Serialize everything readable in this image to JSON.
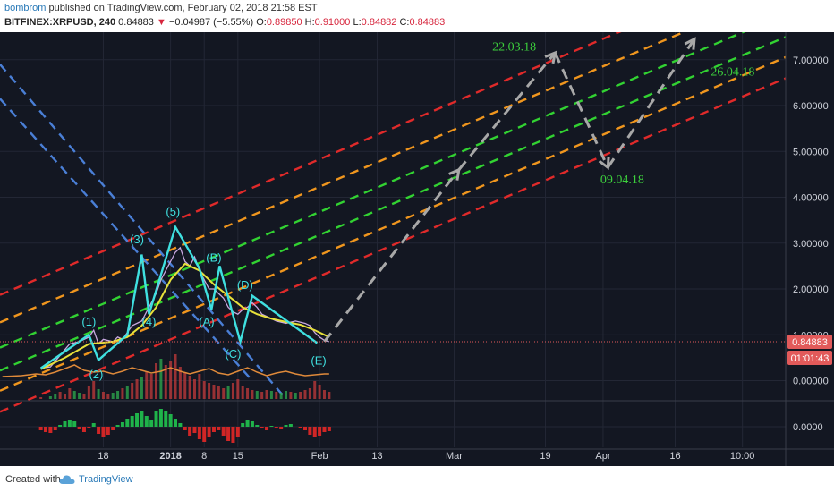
{
  "header": {
    "author": "bombrom",
    "published": "published on TradingView.com, February 02, 2018 21:58 EST",
    "symbol": "BITFINEX:XRPUSD, 240",
    "last": "0.84883",
    "change": "−0.04987 (−5.55%)",
    "o_label": "O:",
    "o_value": "0.89850",
    "h_label": "H:",
    "h_value": "0.91000",
    "l_label": "L:",
    "l_value": "0.84882",
    "c_label": "C:",
    "c_value": "0.84883"
  },
  "footer": {
    "created": "Created with",
    "brand": "TradingView"
  },
  "colors": {
    "bg": "#131722",
    "grid": "#232735",
    "axis_text": "#d1d4dc",
    "red": "#e02a2a",
    "orange": "#f0961e",
    "green": "#32d232",
    "blue": "#4a7fd6",
    "cyan": "#3fe0e0",
    "yellow": "#e7e13a",
    "gray_arrow": "#a8a8a8",
    "label_green": "#3ccf3c",
    "price_badge": "#e25a5a"
  },
  "chart_data": {
    "type": "line",
    "y_ticks": [
      "7.00000",
      "6.00000",
      "5.00000",
      "4.00000",
      "3.00000",
      "2.00000",
      "1.00000",
      "0.00000"
    ],
    "y_tick_values": [
      7,
      6,
      5,
      4,
      3,
      2,
      1,
      0
    ],
    "ylim": [
      -0.4,
      7.6
    ],
    "x_ticks": [
      "18",
      "2018",
      "8",
      "15",
      "Feb",
      "13",
      "Mar",
      "19",
      "Apr",
      "16",
      "10:00"
    ],
    "x_tick_days": [
      -14,
      0,
      7,
      14,
      31,
      43,
      59,
      78,
      90,
      105,
      119
    ],
    "x_tick_bold": [
      false,
      true,
      false,
      false,
      false,
      false,
      false,
      false,
      false,
      false,
      false
    ],
    "xlim": [
      -35.5,
      128
    ],
    "last_price": "0.84883",
    "countdown": "01:01:43",
    "oscillator_tick": "0.0000",
    "price": [
      [
        -27,
        0.27
      ],
      [
        -25,
        0.3
      ],
      [
        -23,
        0.55
      ],
      [
        -21,
        0.8
      ],
      [
        -19,
        0.85
      ],
      [
        -17,
        0.95
      ],
      [
        -16,
        1.1
      ],
      [
        -15,
        0.8
      ],
      [
        -14,
        0.9
      ],
      [
        -12,
        0.85
      ],
      [
        -11,
        0.95
      ],
      [
        -10,
        0.9
      ],
      [
        -9,
        1.05
      ],
      [
        -8,
        1.2
      ],
      [
        -6,
        1.3
      ],
      [
        -5,
        1.5
      ],
      [
        -3,
        1.9
      ],
      [
        -2,
        2.2
      ],
      [
        0,
        2.6
      ],
      [
        1,
        2.8
      ],
      [
        2,
        2.9
      ],
      [
        3,
        2.6
      ],
      [
        4,
        2.5
      ],
      [
        5,
        2.7
      ],
      [
        6,
        2.4
      ],
      [
        7,
        2.2
      ],
      [
        8,
        2.0
      ],
      [
        9,
        2.0
      ],
      [
        10,
        1.9
      ],
      [
        11,
        1.8
      ],
      [
        12,
        1.6
      ],
      [
        13,
        1.5
      ],
      [
        14,
        1.45
      ],
      [
        15,
        1.55
      ],
      [
        16,
        1.6
      ],
      [
        17,
        1.7
      ],
      [
        18,
        1.6
      ],
      [
        19,
        1.45
      ],
      [
        20,
        1.4
      ],
      [
        21,
        1.35
      ],
      [
        22,
        1.3
      ],
      [
        24,
        1.25
      ],
      [
        26,
        1.3
      ],
      [
        28,
        1.25
      ],
      [
        29,
        1.2
      ],
      [
        30,
        1.05
      ],
      [
        31,
        0.95
      ],
      [
        32,
        0.88
      ],
      [
        33,
        0.85
      ]
    ],
    "ma_yellow": [
      [
        -27,
        0.25
      ],
      [
        -22,
        0.5
      ],
      [
        -17,
        0.8
      ],
      [
        -12,
        0.85
      ],
      [
        -9,
        0.95
      ],
      [
        -6,
        1.2
      ],
      [
        -3,
        1.6
      ],
      [
        0,
        2.2
      ],
      [
        3,
        2.55
      ],
      [
        6,
        2.4
      ],
      [
        9,
        2.1
      ],
      [
        12,
        1.85
      ],
      [
        15,
        1.6
      ],
      [
        18,
        1.45
      ],
      [
        21,
        1.35
      ],
      [
        24,
        1.28
      ],
      [
        27,
        1.22
      ],
      [
        30,
        1.1
      ],
      [
        33,
        0.95
      ]
    ],
    "elliott_wave": [
      [
        -27,
        0.27
      ],
      [
        -17,
        1.0
      ],
      [
        -15,
        0.45
      ],
      [
        -9,
        1.0
      ],
      [
        -6,
        2.75
      ],
      [
        -4.5,
        1.45
      ],
      [
        1,
        3.35
      ],
      [
        6,
        2.45
      ],
      [
        8.5,
        1.55
      ],
      [
        10.2,
        2.5
      ],
      [
        14.5,
        0.85
      ],
      [
        17,
        1.85
      ],
      [
        30.5,
        0.82
      ]
    ],
    "wave_labels": [
      {
        "text": "(1)",
        "x": -17,
        "y": 1.2
      },
      {
        "text": "(2)",
        "x": -15.5,
        "y": 0.05
      },
      {
        "text": "(3)",
        "x": -7,
        "y": 3.0
      },
      {
        "text": "(4)",
        "x": -4.5,
        "y": 1.2
      },
      {
        "text": "(5)",
        "x": 0.5,
        "y": 3.6
      },
      {
        "text": "(A)",
        "x": 7.5,
        "y": 1.2
      },
      {
        "text": "(B)",
        "x": 9,
        "y": 2.6
      },
      {
        "text": "(C)",
        "x": 13,
        "y": 0.5
      },
      {
        "text": "(D)",
        "x": 15.5,
        "y": 2.0
      },
      {
        "text": "(E)",
        "x": 30.8,
        "y": 0.35
      }
    ],
    "channel_slope": 0.0445,
    "channel_lines": [
      {
        "color": "red",
        "y0": 1.87
      },
      {
        "color": "orange",
        "y0": 1.27
      },
      {
        "color": "green",
        "y0": 0.72
      },
      {
        "color": "green",
        "y0": 0.22
      },
      {
        "color": "orange",
        "y0": -0.22
      },
      {
        "color": "red",
        "y0": -0.68
      }
    ],
    "blue_lines": [
      {
        "x1": -35.5,
        "y1": 6.9,
        "x2": 24,
        "y2": -0.4
      },
      {
        "x1": -35.5,
        "y1": 6.15,
        "x2": 17,
        "y2": 0.0
      }
    ],
    "projection": [
      [
        32,
        0.85
      ],
      [
        60,
        4.6
      ],
      [
        80,
        7.15
      ],
      [
        91,
        4.65
      ],
      [
        109,
        7.45
      ]
    ],
    "projection_labels": [
      {
        "text": "22.03.18",
        "x": 71.5,
        "y": 7.2
      },
      {
        "text": "09.04.18",
        "x": 94,
        "y": 4.3
      },
      {
        "text": "26.04.18",
        "x": 117,
        "y": 6.65
      }
    ],
    "volume": [
      [
        -27,
        2
      ],
      [
        -25,
        3
      ],
      [
        -24,
        5
      ],
      [
        -23,
        8
      ],
      [
        -22,
        6
      ],
      [
        -21,
        12
      ],
      [
        -20,
        9
      ],
      [
        -19,
        7
      ],
      [
        -18,
        6
      ],
      [
        -17,
        14
      ],
      [
        -16,
        20
      ],
      [
        -15,
        11
      ],
      [
        -14,
        8
      ],
      [
        -13,
        6
      ],
      [
        -12,
        7
      ],
      [
        -11,
        9
      ],
      [
        -10,
        12
      ],
      [
        -9,
        15
      ],
      [
        -8,
        18
      ],
      [
        -7,
        22
      ],
      [
        -6,
        25
      ],
      [
        -5,
        30
      ],
      [
        -4,
        28
      ],
      [
        -3,
        40
      ],
      [
        -2,
        45
      ],
      [
        -1,
        38
      ],
      [
        0,
        42
      ],
      [
        1,
        50
      ],
      [
        2,
        36
      ],
      [
        3,
        30
      ],
      [
        4,
        26
      ],
      [
        5,
        22
      ],
      [
        6,
        28
      ],
      [
        7,
        20
      ],
      [
        8,
        18
      ],
      [
        9,
        16
      ],
      [
        10,
        14
      ],
      [
        11,
        12
      ],
      [
        12,
        15
      ],
      [
        13,
        18
      ],
      [
        14,
        22
      ],
      [
        15,
        14
      ],
      [
        16,
        12
      ],
      [
        17,
        10
      ],
      [
        18,
        9
      ],
      [
        19,
        8
      ],
      [
        20,
        10
      ],
      [
        21,
        9
      ],
      [
        22,
        8
      ],
      [
        23,
        7
      ],
      [
        24,
        9
      ],
      [
        25,
        8
      ],
      [
        26,
        7
      ],
      [
        27,
        8
      ],
      [
        28,
        10
      ],
      [
        29,
        12
      ],
      [
        30,
        20
      ],
      [
        31,
        16
      ],
      [
        32,
        10
      ],
      [
        33,
        8
      ]
    ],
    "orange_indicator": [
      [
        -35,
        3
      ],
      [
        -31,
        4
      ],
      [
        -28,
        6
      ],
      [
        -26,
        5
      ],
      [
        -24,
        8
      ],
      [
        -22,
        12
      ],
      [
        -20,
        16
      ],
      [
        -18,
        10
      ],
      [
        -16,
        8
      ],
      [
        -14,
        9
      ],
      [
        -12,
        6
      ],
      [
        -10,
        9
      ],
      [
        -8,
        13
      ],
      [
        -6,
        10
      ],
      [
        -4,
        7
      ],
      [
        -2,
        9
      ],
      [
        0,
        13
      ],
      [
        2,
        9
      ],
      [
        4,
        6
      ],
      [
        6,
        9
      ],
      [
        8,
        12
      ],
      [
        10,
        7
      ],
      [
        12,
        5
      ],
      [
        14,
        9
      ],
      [
        16,
        13
      ],
      [
        18,
        8
      ],
      [
        20,
        4
      ],
      [
        22,
        7
      ],
      [
        24,
        9
      ],
      [
        26,
        6
      ],
      [
        28,
        4
      ],
      [
        30,
        5
      ],
      [
        32,
        6
      ],
      [
        33,
        6
      ]
    ],
    "oscillator_bars": [
      [
        -27,
        -0.2
      ],
      [
        -26,
        -0.3
      ],
      [
        -25,
        -0.35
      ],
      [
        -24,
        -0.2
      ],
      [
        -23,
        0.1
      ],
      [
        -22,
        0.3
      ],
      [
        -21,
        0.4
      ],
      [
        -20,
        0.3
      ],
      [
        -19,
        -0.15
      ],
      [
        -18,
        -0.3
      ],
      [
        -17,
        -0.1
      ],
      [
        -16,
        0.2
      ],
      [
        -15,
        -0.4
      ],
      [
        -14,
        -0.6
      ],
      [
        -13,
        -0.45
      ],
      [
        -12,
        -0.2
      ],
      [
        -11,
        0.1
      ],
      [
        -10,
        0.25
      ],
      [
        -9,
        0.45
      ],
      [
        -8,
        0.6
      ],
      [
        -7,
        0.75
      ],
      [
        -6,
        0.85
      ],
      [
        -5,
        0.6
      ],
      [
        -4,
        0.4
      ],
      [
        -3,
        0.9
      ],
      [
        -2,
        1.0
      ],
      [
        -1,
        0.85
      ],
      [
        0,
        0.7
      ],
      [
        1,
        0.45
      ],
      [
        2,
        0.2
      ],
      [
        3,
        -0.2
      ],
      [
        4,
        -0.5
      ],
      [
        5,
        -0.35
      ],
      [
        6,
        -0.7
      ],
      [
        7,
        -0.85
      ],
      [
        8,
        -0.6
      ],
      [
        9,
        -0.3
      ],
      [
        10,
        -0.2
      ],
      [
        11,
        -0.5
      ],
      [
        12,
        -0.8
      ],
      [
        13,
        -0.9
      ],
      [
        14,
        -0.6
      ],
      [
        15,
        0.2
      ],
      [
        16,
        0.4
      ],
      [
        17,
        0.3
      ],
      [
        18,
        0.1
      ],
      [
        19,
        -0.1
      ],
      [
        20,
        -0.2
      ],
      [
        21,
        0.05
      ],
      [
        22,
        -0.1
      ],
      [
        23,
        -0.15
      ],
      [
        24,
        0.1
      ],
      [
        25,
        0.15
      ],
      [
        26,
        0.0
      ],
      [
        27,
        -0.1
      ],
      [
        28,
        -0.2
      ],
      [
        29,
        -0.45
      ],
      [
        30,
        -0.6
      ],
      [
        31,
        -0.5
      ],
      [
        32,
        -0.3
      ],
      [
        33,
        -0.25
      ]
    ]
  }
}
